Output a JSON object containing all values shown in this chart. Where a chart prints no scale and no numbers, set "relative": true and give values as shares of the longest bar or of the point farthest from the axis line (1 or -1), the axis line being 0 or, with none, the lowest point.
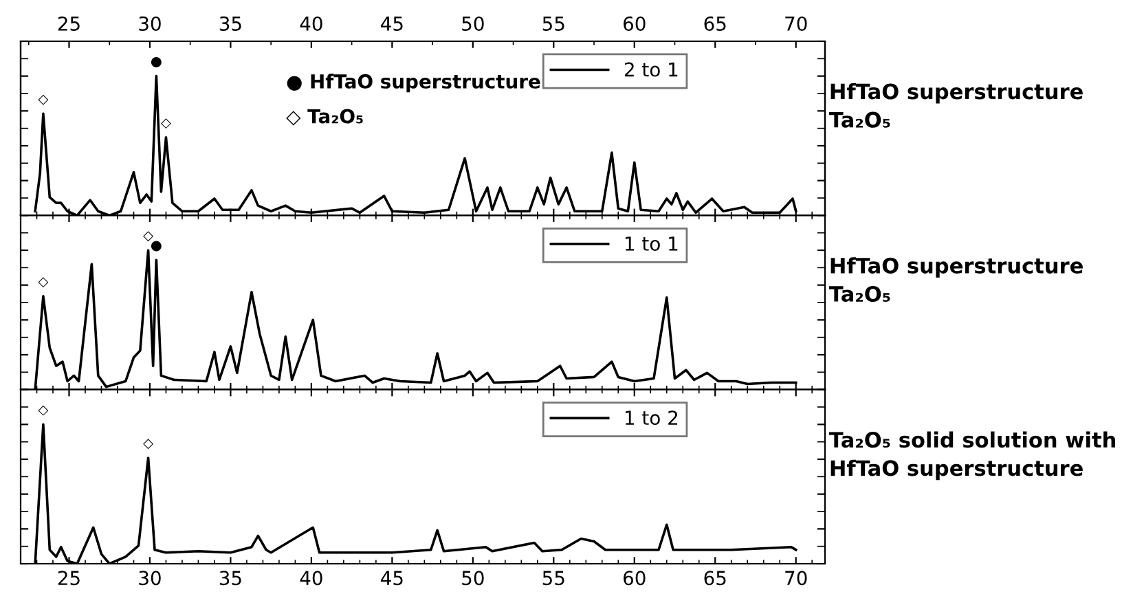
{
  "chart_data": [
    {
      "type": "line",
      "relative": true,
      "x2lim": [
        22,
        71.8
      ],
      "x2ticks": [
        25,
        30,
        35,
        40,
        45,
        50,
        55,
        60,
        65,
        70
      ],
      "xlim": [
        22,
        71.8
      ],
      "tick_labels": false,
      "legend": "top right",
      "x": [
        22.9,
        23.2,
        23.4,
        23.8,
        24.2,
        24.5,
        24.9,
        25.5,
        26.3,
        26.8,
        27.5,
        28.2,
        29.0,
        29.4,
        29.8,
        30.1,
        30.4,
        30.7,
        31.0,
        31.4,
        32,
        33,
        34.0,
        34.5,
        35.5,
        36.3,
        36.7,
        37.5,
        38.4,
        39,
        40,
        42.5,
        43,
        44.5,
        45,
        47,
        48.5,
        49.5,
        50.2,
        50.9,
        51.2,
        51.7,
        52.2,
        53.5,
        54.0,
        54.4,
        54.8,
        55.3,
        55.8,
        56.3,
        58,
        58.6,
        59,
        59.6,
        60.0,
        60.4,
        61.5,
        62,
        62.3,
        62.6,
        63,
        63.3,
        63.8,
        64.8,
        65.5,
        66.8,
        67.3,
        69.0,
        69.8,
        70
      ],
      "series": [
        {
          "name": "2 to 1",
          "color": "#000000",
          "values": [
            0.03,
            0.3,
            0.73,
            0.13,
            0.09,
            0.09,
            0.03,
            0.0,
            0.11,
            0.03,
            0.0,
            0.03,
            0.31,
            0.09,
            0.15,
            0.1,
            1.0,
            0.17,
            0.56,
            0.09,
            0.03,
            0.03,
            0.12,
            0.04,
            0.04,
            0.18,
            0.07,
            0.03,
            0.07,
            0.03,
            0.02,
            0.05,
            0.02,
            0.14,
            0.03,
            0.02,
            0.04,
            0.41,
            0.03,
            0.2,
            0.04,
            0.2,
            0.03,
            0.03,
            0.2,
            0.08,
            0.27,
            0.08,
            0.2,
            0.03,
            0.03,
            0.45,
            0.05,
            0.03,
            0.38,
            0.04,
            0.03,
            0.12,
            0.08,
            0.16,
            0.04,
            0.1,
            0.02,
            0.12,
            0.03,
            0.06,
            0.02,
            0.02,
            0.12,
            0.03
          ]
        }
      ],
      "annotations": [
        "● HfTaO superstructure",
        "◇ Ta₂O₅",
        {
          "text": "◇",
          "x": 23.4,
          "y": 0.73
        },
        {
          "text": "●",
          "x": 30.4,
          "y": 1.0
        },
        {
          "text": "◇",
          "x": 31.0,
          "y": 0.56
        },
        "HfTaO superstructure\nTa₂O₅"
      ]
    },
    {
      "type": "line",
      "relative": true,
      "xlim": [
        22,
        71.8
      ],
      "tick_labels": false,
      "legend": "top right",
      "x": [
        22.9,
        23.4,
        23.8,
        24.2,
        24.6,
        24.9,
        25.3,
        25.6,
        26.4,
        26.8,
        27.3,
        28.5,
        29.0,
        29.4,
        29.9,
        30.2,
        30.4,
        30.7,
        31.5,
        33.5,
        34.0,
        34.3,
        35.0,
        35.4,
        36.3,
        36.8,
        37.5,
        38.0,
        38.4,
        38.8,
        40.1,
        40.6,
        41.5,
        43.3,
        43.8,
        44.5,
        45.5,
        47.4,
        47.8,
        48.2,
        49.5,
        49.8,
        50.2,
        50.9,
        51.3,
        54.0,
        55.4,
        55.8,
        57.5,
        58.6,
        59,
        60,
        61.2,
        62.0,
        62.5,
        63.2,
        63.7,
        64.5,
        65.2,
        66.3,
        67,
        68.5,
        70
      ],
      "series": [
        {
          "name": "1 to 1",
          "color": "#000000",
          "values": [
            0,
            0.67,
            0.3,
            0.17,
            0.2,
            0.06,
            0.1,
            0.06,
            0.9,
            0.1,
            0.02,
            0.06,
            0.23,
            0.28,
            1.0,
            0.17,
            0.93,
            0.1,
            0.07,
            0.06,
            0.27,
            0.07,
            0.31,
            0.12,
            0.7,
            0.4,
            0.1,
            0.07,
            0.38,
            0.07,
            0.5,
            0.1,
            0.06,
            0.1,
            0.05,
            0.08,
            0.06,
            0.05,
            0.26,
            0.06,
            0.1,
            0.13,
            0.06,
            0.12,
            0.05,
            0.06,
            0.17,
            0.08,
            0.09,
            0.2,
            0.09,
            0.06,
            0.08,
            0.66,
            0.08,
            0.14,
            0.07,
            0.12,
            0.06,
            0.06,
            0.04,
            0.05,
            0.05
          ]
        }
      ],
      "annotations": [
        {
          "text": "◇",
          "x": 23.4,
          "y": 0.67
        },
        {
          "text": "◇",
          "x": 29.9,
          "y": 1.0
        },
        {
          "text": "●",
          "x": 30.4,
          "y": 0.93
        },
        "HfTaO superstructure\nTa₂O₅"
      ]
    },
    {
      "type": "line",
      "relative": true,
      "xlim": [
        22,
        71.8
      ],
      "xticks": [
        25,
        30,
        35,
        40,
        45,
        50,
        55,
        60,
        65,
        70
      ],
      "tick_labels": "x",
      "legend": "top right",
      "x": [
        22.9,
        23.4,
        23.8,
        24.2,
        24.5,
        24.9,
        25.5,
        26.5,
        27.0,
        27.5,
        28.5,
        29.3,
        29.9,
        30.3,
        31,
        33,
        35,
        36.3,
        36.7,
        37.2,
        37.5,
        40.1,
        40.5,
        45,
        47.4,
        47.8,
        48.2,
        50.8,
        51.2,
        53.8,
        54.3,
        55.5,
        56.7,
        57.5,
        58.2,
        61.5,
        62.0,
        62.4,
        66,
        69.7,
        70
      ],
      "series": [
        {
          "name": "1 to 2",
          "color": "#000000",
          "values": [
            0,
            1.0,
            0.1,
            0.05,
            0.12,
            0.02,
            0.0,
            0.26,
            0.07,
            0.0,
            0.05,
            0.13,
            0.76,
            0.1,
            0.08,
            0.09,
            0.08,
            0.12,
            0.2,
            0.1,
            0.08,
            0.26,
            0.08,
            0.08,
            0.1,
            0.24,
            0.09,
            0.12,
            0.09,
            0.15,
            0.09,
            0.1,
            0.18,
            0.16,
            0.1,
            0.1,
            0.28,
            0.1,
            0.1,
            0.12,
            0.1
          ]
        }
      ],
      "annotations": [
        {
          "text": "◇",
          "x": 23.4,
          "y": 1.0
        },
        {
          "text": "◇",
          "x": 29.9,
          "y": 0.76
        },
        "Ta₂O₅ solid solution with\nHfTaO superstructure"
      ]
    }
  ]
}
